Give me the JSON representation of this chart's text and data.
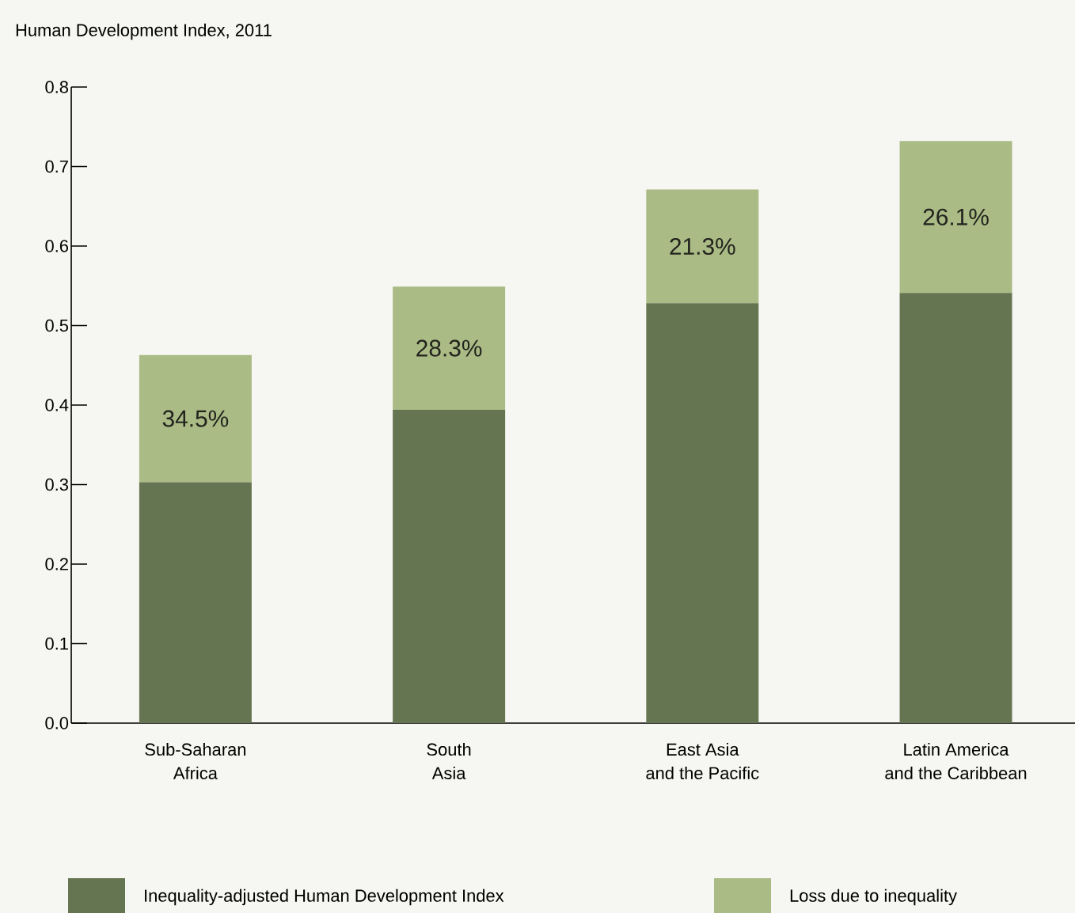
{
  "chart_data": {
    "type": "bar",
    "title": "Human Development Index, 2011",
    "stacked": true,
    "categories": [
      "Sub-Saharan\nAfrica",
      "South\nAsia",
      "East Asia\nand the Pacific",
      "Latin America\nand the Caribbean"
    ],
    "series": [
      {
        "name": "Inequality-adjusted Human Development Index",
        "color": "#667551",
        "values": [
          0.303,
          0.394,
          0.528,
          0.541
        ]
      },
      {
        "name": "Loss due to inequality",
        "color": "#aabb85",
        "values": [
          0.16,
          0.155,
          0.143,
          0.191
        ]
      }
    ],
    "annotations": [
      "34.5%",
      "28.3%",
      "21.3%",
      "26.1%"
    ],
    "ylim": [
      0,
      0.8
    ],
    "yticks": [
      {
        "value": 0,
        "label": "0.0"
      },
      0.1,
      0.2,
      0.3,
      0.4,
      0.5,
      0.6,
      0.7,
      0.8
    ],
    "legend": "bottom"
  }
}
